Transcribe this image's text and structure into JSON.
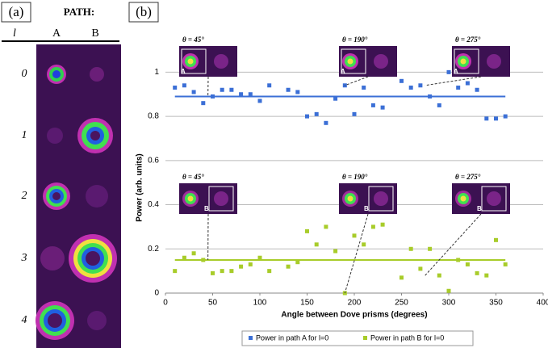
{
  "panel_a": {
    "label": "(a)",
    "path_header": "PATH:",
    "columns": [
      "A",
      "B"
    ],
    "l_header": "l",
    "rows": [
      "0",
      "1",
      "2",
      "3",
      "4"
    ]
  },
  "chart_data": {
    "type": "scatter",
    "label": "(b)",
    "x_label": "Angle between Dove prisms (degrees)",
    "y_label": "Power (arb. units)",
    "xlim": [
      0,
      400
    ],
    "xticks": [
      0,
      50,
      100,
      150,
      200,
      250,
      300,
      350,
      400
    ],
    "ylim": [
      0,
      1.1
    ],
    "yticks": [
      0,
      0.2,
      0.4,
      0.6,
      0.8,
      1
    ],
    "grid": true,
    "legend": "bottom",
    "series": [
      {
        "name": "Power in path A for l=0",
        "color": "#3b6fd6",
        "x": [
          10,
          20,
          30,
          40,
          50,
          60,
          70,
          80,
          90,
          100,
          110,
          130,
          140,
          150,
          160,
          170,
          180,
          190,
          200,
          210,
          220,
          230,
          250,
          260,
          270,
          280,
          290,
          300,
          310,
          320,
          330,
          340,
          350,
          360
        ],
        "values": [
          0.93,
          0.94,
          0.91,
          0.86,
          0.89,
          0.92,
          0.92,
          0.9,
          0.9,
          0.87,
          0.94,
          0.92,
          0.91,
          0.8,
          0.81,
          0.77,
          0.88,
          0.94,
          0.81,
          0.93,
          0.85,
          0.84,
          0.96,
          0.93,
          0.94,
          0.89,
          0.85,
          1.0,
          0.93,
          0.95,
          0.92,
          0.79,
          0.79,
          0.8
        ],
        "mean": 0.89
      },
      {
        "name": "Power in path B for l=0",
        "color": "#a8cc2a",
        "x": [
          10,
          20,
          30,
          40,
          50,
          60,
          70,
          80,
          90,
          100,
          110,
          130,
          140,
          150,
          160,
          170,
          180,
          190,
          200,
          210,
          220,
          230,
          250,
          260,
          270,
          280,
          290,
          300,
          310,
          320,
          330,
          340,
          350,
          360
        ],
        "values": [
          0.1,
          0.16,
          0.18,
          0.15,
          0.09,
          0.1,
          0.1,
          0.12,
          0.13,
          0.16,
          0.1,
          0.12,
          0.14,
          0.28,
          0.22,
          0.3,
          0.19,
          0.0,
          0.26,
          0.22,
          0.3,
          0.31,
          0.07,
          0.2,
          0.11,
          0.2,
          0.08,
          0.01,
          0.15,
          0.13,
          0.09,
          0.08,
          0.24,
          0.13
        ],
        "mean": 0.15
      }
    ],
    "annotations": [
      {
        "text": "θ = 45°",
        "inset": "A",
        "x": 45,
        "y": 0.89
      },
      {
        "text": "θ = 190°",
        "inset": "A",
        "x": 190,
        "y": 0.94
      },
      {
        "text": "θ = 275°",
        "inset": "A",
        "x": 275,
        "y": 0.94
      },
      {
        "text": "θ = 45°",
        "inset": "B",
        "x": 45,
        "y": 0.15
      },
      {
        "text": "θ = 190°",
        "inset": "B",
        "x": 190,
        "y": 0.0
      },
      {
        "text": "θ = 275°",
        "inset": "B",
        "x": 275,
        "y": 0.08
      }
    ]
  }
}
